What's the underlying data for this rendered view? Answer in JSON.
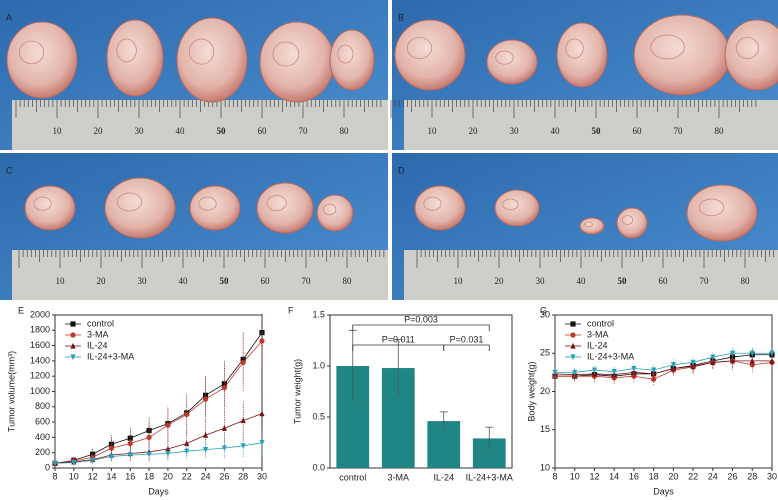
{
  "photos": [
    {
      "label": "A",
      "ruler": [
        "10",
        "20",
        "30",
        "40",
        "50",
        "60",
        "70",
        "80"
      ]
    },
    {
      "label": "B",
      "ruler": [
        "10",
        "20",
        "30",
        "40",
        "50",
        "60",
        "70",
        "80"
      ]
    },
    {
      "label": "C",
      "ruler": [
        "10",
        "20",
        "30",
        "40",
        "50",
        "60",
        "70",
        "80"
      ]
    },
    {
      "label": "D",
      "ruler": [
        "10",
        "20",
        "30",
        "40",
        "50",
        "60",
        "70",
        "80"
      ]
    }
  ],
  "chart_data": [
    {
      "type": "line",
      "panel": "E",
      "x_label": "Days",
      "y_label": "Tumor volume(mm³)",
      "x": [
        8,
        10,
        12,
        14,
        16,
        18,
        20,
        22,
        24,
        26,
        28,
        30
      ],
      "xlim": [
        8,
        30
      ],
      "xticks": [
        8,
        10,
        12,
        14,
        16,
        18,
        20,
        22,
        24,
        26,
        28,
        30
      ],
      "ylim": [
        0,
        2000
      ],
      "yticks": [
        0,
        200,
        400,
        600,
        800,
        1000,
        1200,
        1400,
        1600,
        1800,
        2000
      ],
      "legend": "upper left",
      "series": [
        {
          "name": "control",
          "color": "#111111",
          "marker": "square",
          "values": [
            60,
            100,
            180,
            310,
            390,
            490,
            580,
            720,
            950,
            1100,
            1420,
            1770
          ],
          "errors": [
            20,
            40,
            80,
            120,
            150,
            180,
            200,
            230,
            260,
            300,
            350,
            260
          ]
        },
        {
          "name": "3-MA",
          "color": "#c0392b",
          "marker": "circle",
          "values": [
            60,
            90,
            140,
            260,
            320,
            400,
            560,
            700,
            900,
            1050,
            1380,
            1660
          ],
          "errors": [
            20,
            40,
            70,
            120,
            160,
            200,
            250,
            280,
            300,
            320,
            380,
            350
          ]
        },
        {
          "name": "IL-24",
          "color": "#7a1010",
          "marker": "triangle",
          "values": [
            60,
            80,
            110,
            170,
            190,
            210,
            250,
            320,
            430,
            520,
            620,
            710
          ],
          "errors": [
            15,
            30,
            50,
            80,
            100,
            120,
            140,
            170,
            200,
            230,
            260,
            280
          ]
        },
        {
          "name": "IL-24+3-MA",
          "color": "#2a9fb8",
          "marker": "down-triangle",
          "values": [
            60,
            70,
            100,
            150,
            170,
            180,
            190,
            220,
            240,
            260,
            290,
            330
          ],
          "errors": [
            10,
            20,
            40,
            60,
            70,
            80,
            90,
            100,
            110,
            130,
            150,
            180
          ]
        }
      ]
    },
    {
      "type": "bar",
      "panel": "F",
      "y_label": "Tumor weight(g)",
      "categories": [
        "control",
        "3-MA",
        "IL-24",
        "IL-24+3-MA"
      ],
      "values": [
        1.0,
        0.98,
        0.46,
        0.29
      ],
      "errors": [
        0.35,
        0.28,
        0.09,
        0.11
      ],
      "color": "#1f8585",
      "ylim": [
        0,
        1.5
      ],
      "yticks": [
        {
          "value": 0,
          "label": "0.0"
        },
        {
          "value": 0.5,
          "label": "0.5"
        },
        {
          "value": 1,
          "label": "1.0"
        },
        {
          "value": 1.5,
          "label": "1.5"
        }
      ],
      "annotations": [
        {
          "text": "P=0.003",
          "between": [
            "control",
            "IL-24+3-MA"
          ]
        },
        {
          "text": "P=0.011",
          "between": [
            "control",
            "IL-24"
          ]
        },
        {
          "text": "P=0.031",
          "between": [
            "IL-24",
            "IL-24+3-MA"
          ]
        }
      ]
    },
    {
      "type": "line",
      "panel": "G",
      "x_label": "Days",
      "y_label": "Body weight(g)",
      "x": [
        8,
        10,
        12,
        14,
        16,
        18,
        20,
        22,
        24,
        26,
        28,
        30
      ],
      "xlim": [
        8,
        30
      ],
      "xticks": [
        8,
        10,
        12,
        14,
        16,
        18,
        20,
        22,
        24,
        26,
        28,
        30
      ],
      "ylim": [
        10,
        30
      ],
      "yticks": [
        10,
        15,
        20,
        25,
        30
      ],
      "legend": "upper left",
      "series": [
        {
          "name": "control",
          "color": "#111111",
          "marker": "square",
          "values": [
            22,
            22,
            22.2,
            22,
            22.3,
            22.3,
            23,
            23.4,
            24,
            24.5,
            24.8,
            24.8
          ],
          "errors": [
            0.6,
            0.6,
            0.6,
            0.7,
            0.7,
            0.7,
            0.7,
            0.7,
            0.7,
            0.8,
            0.8,
            0.8
          ]
        },
        {
          "name": "3-MA",
          "color": "#c0392b",
          "marker": "circle",
          "values": [
            22,
            22,
            22,
            21.8,
            22,
            21.6,
            22.8,
            23.2,
            23.8,
            24,
            23.5,
            23.8
          ],
          "errors": [
            0.7,
            0.7,
            0.8,
            0.8,
            0.8,
            0.8,
            0.8,
            0.9,
            0.9,
            1.2,
            1.0,
            0.9
          ]
        },
        {
          "name": "IL-24",
          "color": "#7a1010",
          "marker": "triangle",
          "values": [
            22.3,
            22.2,
            22.3,
            22.2,
            22.5,
            22.3,
            23,
            23.3,
            23.8,
            24,
            24,
            24
          ],
          "errors": [
            0.6,
            0.6,
            0.7,
            0.7,
            0.7,
            0.8,
            0.7,
            0.8,
            0.8,
            0.9,
            0.9,
            0.9
          ]
        },
        {
          "name": "IL-24+3-MA",
          "color": "#2a9fb8",
          "marker": "down-triangle",
          "values": [
            22.5,
            22.5,
            22.8,
            22.6,
            23,
            22.8,
            23.5,
            23.8,
            24.5,
            25,
            25,
            25
          ],
          "errors": [
            0.6,
            0.6,
            0.6,
            0.6,
            0.7,
            0.7,
            0.7,
            0.7,
            0.7,
            0.8,
            0.8,
            0.8
          ]
        }
      ]
    }
  ]
}
